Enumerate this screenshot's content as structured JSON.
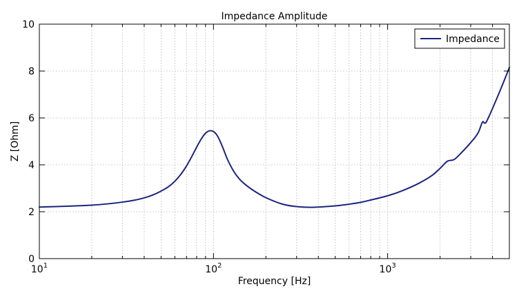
{
  "chart_data": {
    "type": "line",
    "title": "Impedance Amplitude",
    "xlabel": "Frequency [Hz]",
    "ylabel": "Z [Ohm]",
    "xscale": "log",
    "xlim": [
      10,
      5000
    ],
    "ylim": [
      0,
      10
    ],
    "yticks": [
      0,
      2,
      4,
      6,
      8,
      10
    ],
    "xticks": [
      {
        "value": 10,
        "base": "10",
        "exp": "1"
      },
      {
        "value": 100,
        "base": "10",
        "exp": "2"
      },
      {
        "value": 1000,
        "base": "10",
        "exp": "3"
      }
    ],
    "grid": true,
    "legend": {
      "position": "upper right",
      "entries": [
        "Impedance"
      ]
    },
    "series": [
      {
        "name": "Impedance",
        "color": "#1a237e",
        "x": [
          10,
          15,
          20,
          25,
          30,
          35,
          40,
          45,
          50,
          55,
          60,
          65,
          70,
          75,
          80,
          85,
          90,
          95,
          100,
          105,
          110,
          115,
          120,
          130,
          140,
          150,
          170,
          200,
          250,
          300,
          350,
          400,
          500,
          600,
          700,
          800,
          1000,
          1200,
          1500,
          1800,
          2000,
          2200,
          2400,
          2600,
          3000,
          3300,
          3500,
          3600,
          3700,
          4000,
          4500,
          5000
        ],
        "y": [
          2.2,
          2.24,
          2.28,
          2.34,
          2.41,
          2.49,
          2.59,
          2.72,
          2.88,
          3.06,
          3.3,
          3.6,
          3.95,
          4.35,
          4.75,
          5.1,
          5.35,
          5.45,
          5.42,
          5.25,
          4.95,
          4.6,
          4.25,
          3.75,
          3.42,
          3.2,
          2.9,
          2.6,
          2.32,
          2.22,
          2.19,
          2.2,
          2.25,
          2.32,
          2.4,
          2.5,
          2.68,
          2.88,
          3.2,
          3.55,
          3.85,
          4.15,
          4.22,
          4.45,
          4.95,
          5.35,
          5.82,
          5.78,
          5.85,
          6.4,
          7.3,
          8.15
        ]
      }
    ]
  }
}
